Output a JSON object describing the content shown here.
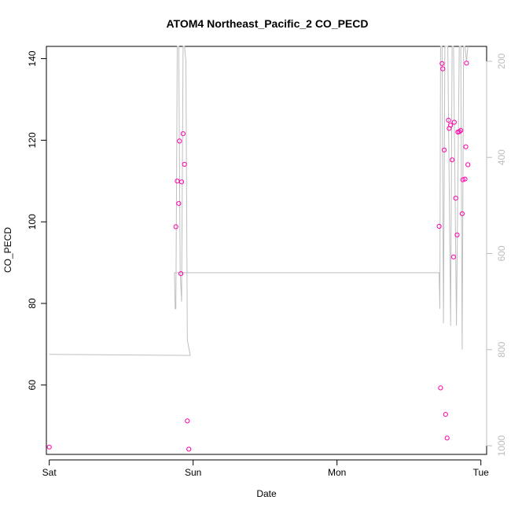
{
  "chart_data": {
    "type": "scatter",
    "title": "ATOM4 Northeast_Pacific_2 CO_PECD",
    "xlabel": "Date",
    "ylabel": "CO_PECD",
    "x_ticks": [
      "Sat",
      "Sun",
      "Mon",
      "Tue"
    ],
    "x_tick_values": [
      0,
      1,
      2,
      3
    ],
    "xlim": [
      -0.02,
      3.04
    ],
    "ylim": [
      43,
      143
    ],
    "y_ticks": [
      60,
      80,
      100,
      120,
      140
    ],
    "y2_ticks": [
      200,
      400,
      600,
      800,
      1000
    ],
    "y2lim": [
      1018,
      169
    ],
    "colors": {
      "points": "#ff00aa",
      "pressure_line": "#bfbfbf",
      "axis": "#000000",
      "y2_axis": "#bdbdbd"
    },
    "series": [
      {
        "type": "scatter",
        "x_units": "days since Sat 00:00",
        "points": [
          [
            0.0,
            44.8
          ],
          [
            0.88,
            98.8
          ],
          [
            0.89,
            110.0
          ],
          [
            0.9,
            104.5
          ],
          [
            0.905,
            119.8
          ],
          [
            0.915,
            87.3
          ],
          [
            0.92,
            109.8
          ],
          [
            0.93,
            121.6
          ],
          [
            0.94,
            114.1
          ],
          [
            0.96,
            51.2
          ],
          [
            0.97,
            44.3
          ],
          [
            2.71,
            98.9
          ],
          [
            2.72,
            59.3
          ],
          [
            2.73,
            138.8
          ],
          [
            2.735,
            137.5
          ],
          [
            2.745,
            117.6
          ],
          [
            2.755,
            52.8
          ],
          [
            2.765,
            47.0
          ],
          [
            2.775,
            124.9
          ],
          [
            2.78,
            122.9
          ],
          [
            2.79,
            123.7
          ],
          [
            2.8,
            115.2
          ],
          [
            2.81,
            91.4
          ],
          [
            2.815,
            124.4
          ],
          [
            2.825,
            105.8
          ],
          [
            2.835,
            96.8
          ],
          [
            2.84,
            122.0
          ],
          [
            2.85,
            122.1
          ],
          [
            2.86,
            122.4
          ],
          [
            2.87,
            102.0
          ],
          [
            2.875,
            110.3
          ],
          [
            2.89,
            110.5
          ],
          [
            2.895,
            118.4
          ],
          [
            2.9,
            138.9
          ],
          [
            2.91,
            114.0
          ]
        ]
      },
      {
        "type": "line",
        "name": "pressure",
        "axis": "y2",
        "points": [
          [
            0.0,
            810
          ],
          [
            0.98,
            812
          ],
          [
            0.96,
            780
          ],
          [
            0.95,
            200
          ],
          [
            0.94,
            160
          ],
          [
            0.93,
            160
          ],
          [
            0.92,
            700
          ],
          [
            0.91,
            640
          ],
          [
            0.9,
            160
          ],
          [
            0.89,
            160
          ],
          [
            0.88,
            715
          ],
          [
            0.875,
            715
          ],
          [
            0.87,
            640
          ],
          [
            2.7,
            640
          ],
          [
            2.71,
            640
          ],
          [
            2.715,
            715
          ],
          [
            2.72,
            160
          ],
          [
            2.73,
            160
          ],
          [
            2.74,
            745
          ],
          [
            2.75,
            160
          ],
          [
            2.77,
            160
          ],
          [
            2.79,
            750
          ],
          [
            2.8,
            160
          ],
          [
            2.81,
            160
          ],
          [
            2.83,
            750
          ],
          [
            2.85,
            160
          ],
          [
            2.86,
            160
          ],
          [
            2.87,
            800
          ],
          [
            2.88,
            160
          ],
          [
            2.89,
            160
          ],
          [
            2.9,
            200
          ],
          [
            2.91,
            160
          ]
        ]
      }
    ]
  }
}
